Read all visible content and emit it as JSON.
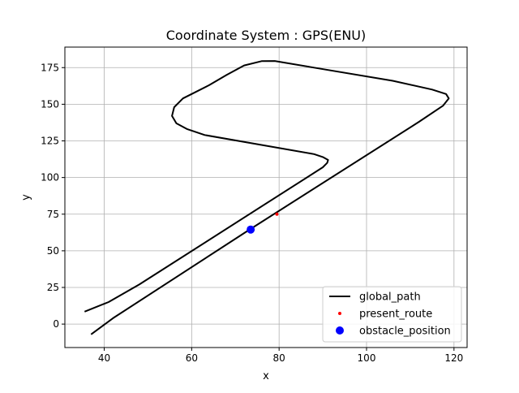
{
  "chart_data": {
    "type": "line",
    "title": "Coordinate System : GPS(ENU)",
    "xlabel": "x",
    "ylabel": "y",
    "xlim": [
      31,
      123
    ],
    "ylim": [
      -16,
      189
    ],
    "xticks": [
      40,
      60,
      80,
      100,
      120
    ],
    "yticks": [
      0,
      25,
      50,
      75,
      100,
      125,
      150,
      175
    ],
    "grid": true,
    "legend_position": "lower-right",
    "series": [
      {
        "name": "global_path",
        "style": "line",
        "color": "#000000",
        "x": [
          37.0,
          42.0,
          73.0,
          112.0,
          117.5,
          118.8,
          118.2,
          115.0,
          106.0,
          88.0,
          79.0,
          76.0,
          72.0,
          68.0,
          64.0,
          60.0,
          58.0,
          56.0,
          55.5,
          56.5,
          59.0,
          63.0,
          88.0,
          90.0,
          91.2,
          91.0,
          90.0,
          48.0,
          41.0,
          35.5
        ],
        "y": [
          -7.0,
          4.0,
          64.0,
          138.0,
          149.0,
          154.0,
          157.0,
          160.0,
          166.0,
          175.0,
          179.5,
          179.4,
          176.5,
          170.0,
          163.0,
          157.0,
          154.0,
          148.0,
          142.0,
          137.0,
          133.0,
          129.0,
          116.0,
          114.0,
          112.0,
          110.0,
          107.0,
          27.0,
          15.0,
          8.5
        ]
      },
      {
        "name": "present_route",
        "style": "points",
        "color": "#ff0000",
        "x": [
          79.5
        ],
        "y": [
          75.0
        ]
      },
      {
        "name": "obstacle_position",
        "style": "points",
        "color": "#0000ff",
        "x": [
          73.5
        ],
        "y": [
          64.5
        ]
      }
    ]
  }
}
